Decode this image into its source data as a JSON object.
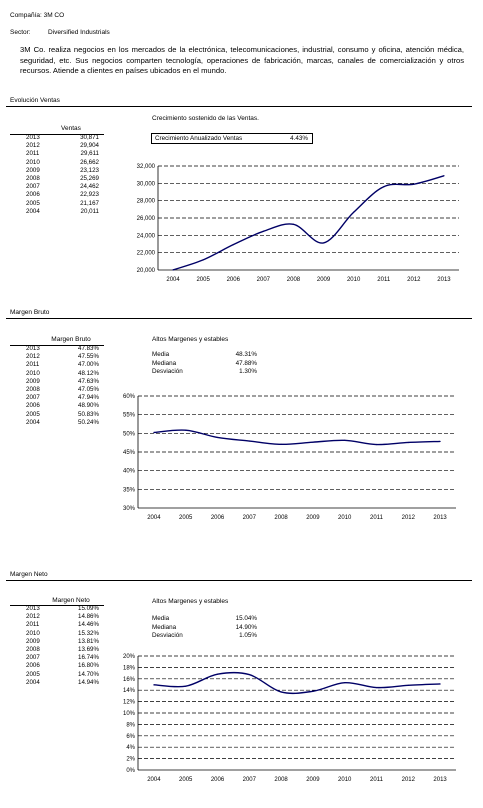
{
  "header": {
    "company_label": "Compañía: 3M CO",
    "sector_label": "Sector:",
    "sector_value": "Diversified Industrials"
  },
  "description": "3M Co. realiza negocios en los mercados de la electrónica, telecomunicaciones, industrial, consumo y oficina, atención médica, seguridad, etc. Sus negocios comparten tecnología, operaciones de fabricación, marcas, canales de comercialización y otros recursos. Atiende a clientes en países ubicados en el mundo.",
  "sections": [
    {
      "title": "Evolución Ventas",
      "column_header": "Ventas",
      "rows": [
        {
          "year": "2013",
          "value": "30,871"
        },
        {
          "year": "2012",
          "value": "29,904"
        },
        {
          "year": "2011",
          "value": "29,611"
        },
        {
          "year": "2010",
          "value": "26,662"
        },
        {
          "year": "2009",
          "value": "23,123"
        },
        {
          "year": "2008",
          "value": "25,269"
        },
        {
          "year": "2007",
          "value": "24,462"
        },
        {
          "year": "2006",
          "value": "22,923"
        },
        {
          "year": "2005",
          "value": "21,167"
        },
        {
          "year": "2004",
          "value": "20,011"
        }
      ],
      "chart_heading": "Crecimiento sostenido de las Ventas.",
      "box_label": "Crecimiento Anualizado Ventas",
      "box_value": "4.43%"
    },
    {
      "title": "Margen Bruto",
      "column_header": "Margen Bruto",
      "rows": [
        {
          "year": "2013",
          "value": "47.83%"
        },
        {
          "year": "2012",
          "value": "47.55%"
        },
        {
          "year": "2011",
          "value": "47.00%"
        },
        {
          "year": "2010",
          "value": "48.12%"
        },
        {
          "year": "2009",
          "value": "47.63%"
        },
        {
          "year": "2008",
          "value": "47.05%"
        },
        {
          "year": "2007",
          "value": "47.94%"
        },
        {
          "year": "2006",
          "value": "48.90%"
        },
        {
          "year": "2005",
          "value": "50.83%"
        },
        {
          "year": "2004",
          "value": "50.24%"
        }
      ],
      "chart_heading": "Altos Margenes y estables",
      "stats": [
        {
          "label": "Media",
          "value": "48.31%"
        },
        {
          "label": "Mediana",
          "value": "47.88%"
        },
        {
          "label": "Desviación",
          "value": "1.30%"
        }
      ]
    },
    {
      "title": "Margen Neto",
      "column_header": "Margen Neto",
      "rows": [
        {
          "year": "2013",
          "value": "15.09%"
        },
        {
          "year": "2012",
          "value": "14.86%"
        },
        {
          "year": "2011",
          "value": "14.46%"
        },
        {
          "year": "2010",
          "value": "15.32%"
        },
        {
          "year": "2009",
          "value": "13.81%"
        },
        {
          "year": "2008",
          "value": "13.69%"
        },
        {
          "year": "2007",
          "value": "16.74%"
        },
        {
          "year": "2006",
          "value": "16.80%"
        },
        {
          "year": "2005",
          "value": "14.70%"
        },
        {
          "year": "2004",
          "value": "14.94%"
        }
      ],
      "chart_heading": "Altos Margenes y estables",
      "stats": [
        {
          "label": "Media",
          "value": "15.04%"
        },
        {
          "label": "Mediana",
          "value": "14.90%"
        },
        {
          "label": "Desviación",
          "value": "1.05%"
        }
      ]
    }
  ],
  "chart_data": [
    {
      "type": "line",
      "x": [
        "2004",
        "2005",
        "2006",
        "2007",
        "2008",
        "2009",
        "2010",
        "2011",
        "2012",
        "2013"
      ],
      "series": [
        {
          "values": [
            20011,
            21167,
            22923,
            24462,
            25269,
            23123,
            26662,
            29611,
            29904,
            30871
          ]
        }
      ],
      "ylim": [
        20000,
        32000
      ],
      "yticks": [
        "20,000",
        "22,000",
        "24,000",
        "26,000",
        "28,000",
        "30,000",
        "32,000"
      ],
      "grid": true,
      "line_color": "#000066"
    },
    {
      "type": "line",
      "x": [
        "2004",
        "2005",
        "2006",
        "2007",
        "2008",
        "2009",
        "2010",
        "2011",
        "2012",
        "2013"
      ],
      "series": [
        {
          "values": [
            50.24,
            50.83,
            48.9,
            47.94,
            47.05,
            47.63,
            48.12,
            47.0,
            47.55,
            47.83
          ]
        }
      ],
      "ylim": [
        30,
        60
      ],
      "yticks": [
        "30%",
        "35%",
        "40%",
        "45%",
        "50%",
        "55%",
        "60%"
      ],
      "grid": true,
      "line_color": "#000066"
    },
    {
      "type": "line",
      "x": [
        "2004",
        "2005",
        "2006",
        "2007",
        "2008",
        "2009",
        "2010",
        "2011",
        "2012",
        "2013"
      ],
      "series": [
        {
          "values": [
            14.94,
            14.7,
            16.8,
            16.74,
            13.69,
            13.81,
            15.32,
            14.46,
            14.86,
            15.09
          ]
        }
      ],
      "ylim": [
        0,
        20
      ],
      "yticks": [
        "0%",
        "2%",
        "4%",
        "6%",
        "8%",
        "10%",
        "12%",
        "14%",
        "16%",
        "18%",
        "20%"
      ],
      "grid": true,
      "line_color": "#000066"
    }
  ]
}
